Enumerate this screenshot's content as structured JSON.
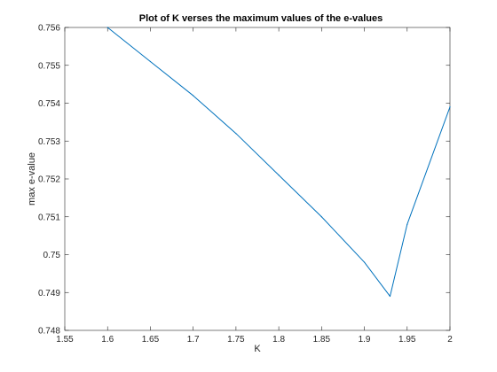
{
  "chart_data": {
    "type": "line",
    "title": "Plot of K verses the maximum values of the e-values",
    "xlabel": "K",
    "ylabel": "max e-value",
    "xlim": [
      1.55,
      2.0
    ],
    "ylim": [
      0.748,
      0.756
    ],
    "x_ticks": [
      "1.55",
      "1.6",
      "1.65",
      "1.7",
      "1.75",
      "1.8",
      "1.85",
      "1.9",
      "1.95",
      "2"
    ],
    "y_ticks": [
      "0.748",
      "0.749",
      "0.75",
      "0.751",
      "0.752",
      "0.753",
      "0.754",
      "0.755",
      "0.756"
    ],
    "grid": false,
    "series": [
      {
        "color": "#0072BD",
        "x": [
          1.6,
          1.65,
          1.7,
          1.75,
          1.8,
          1.85,
          1.9,
          1.93,
          1.95,
          2.0
        ],
        "y": [
          0.756,
          0.7551,
          0.7542,
          0.7532,
          0.7521,
          0.751,
          0.7498,
          0.7489,
          0.7508,
          0.7539
        ]
      }
    ]
  }
}
